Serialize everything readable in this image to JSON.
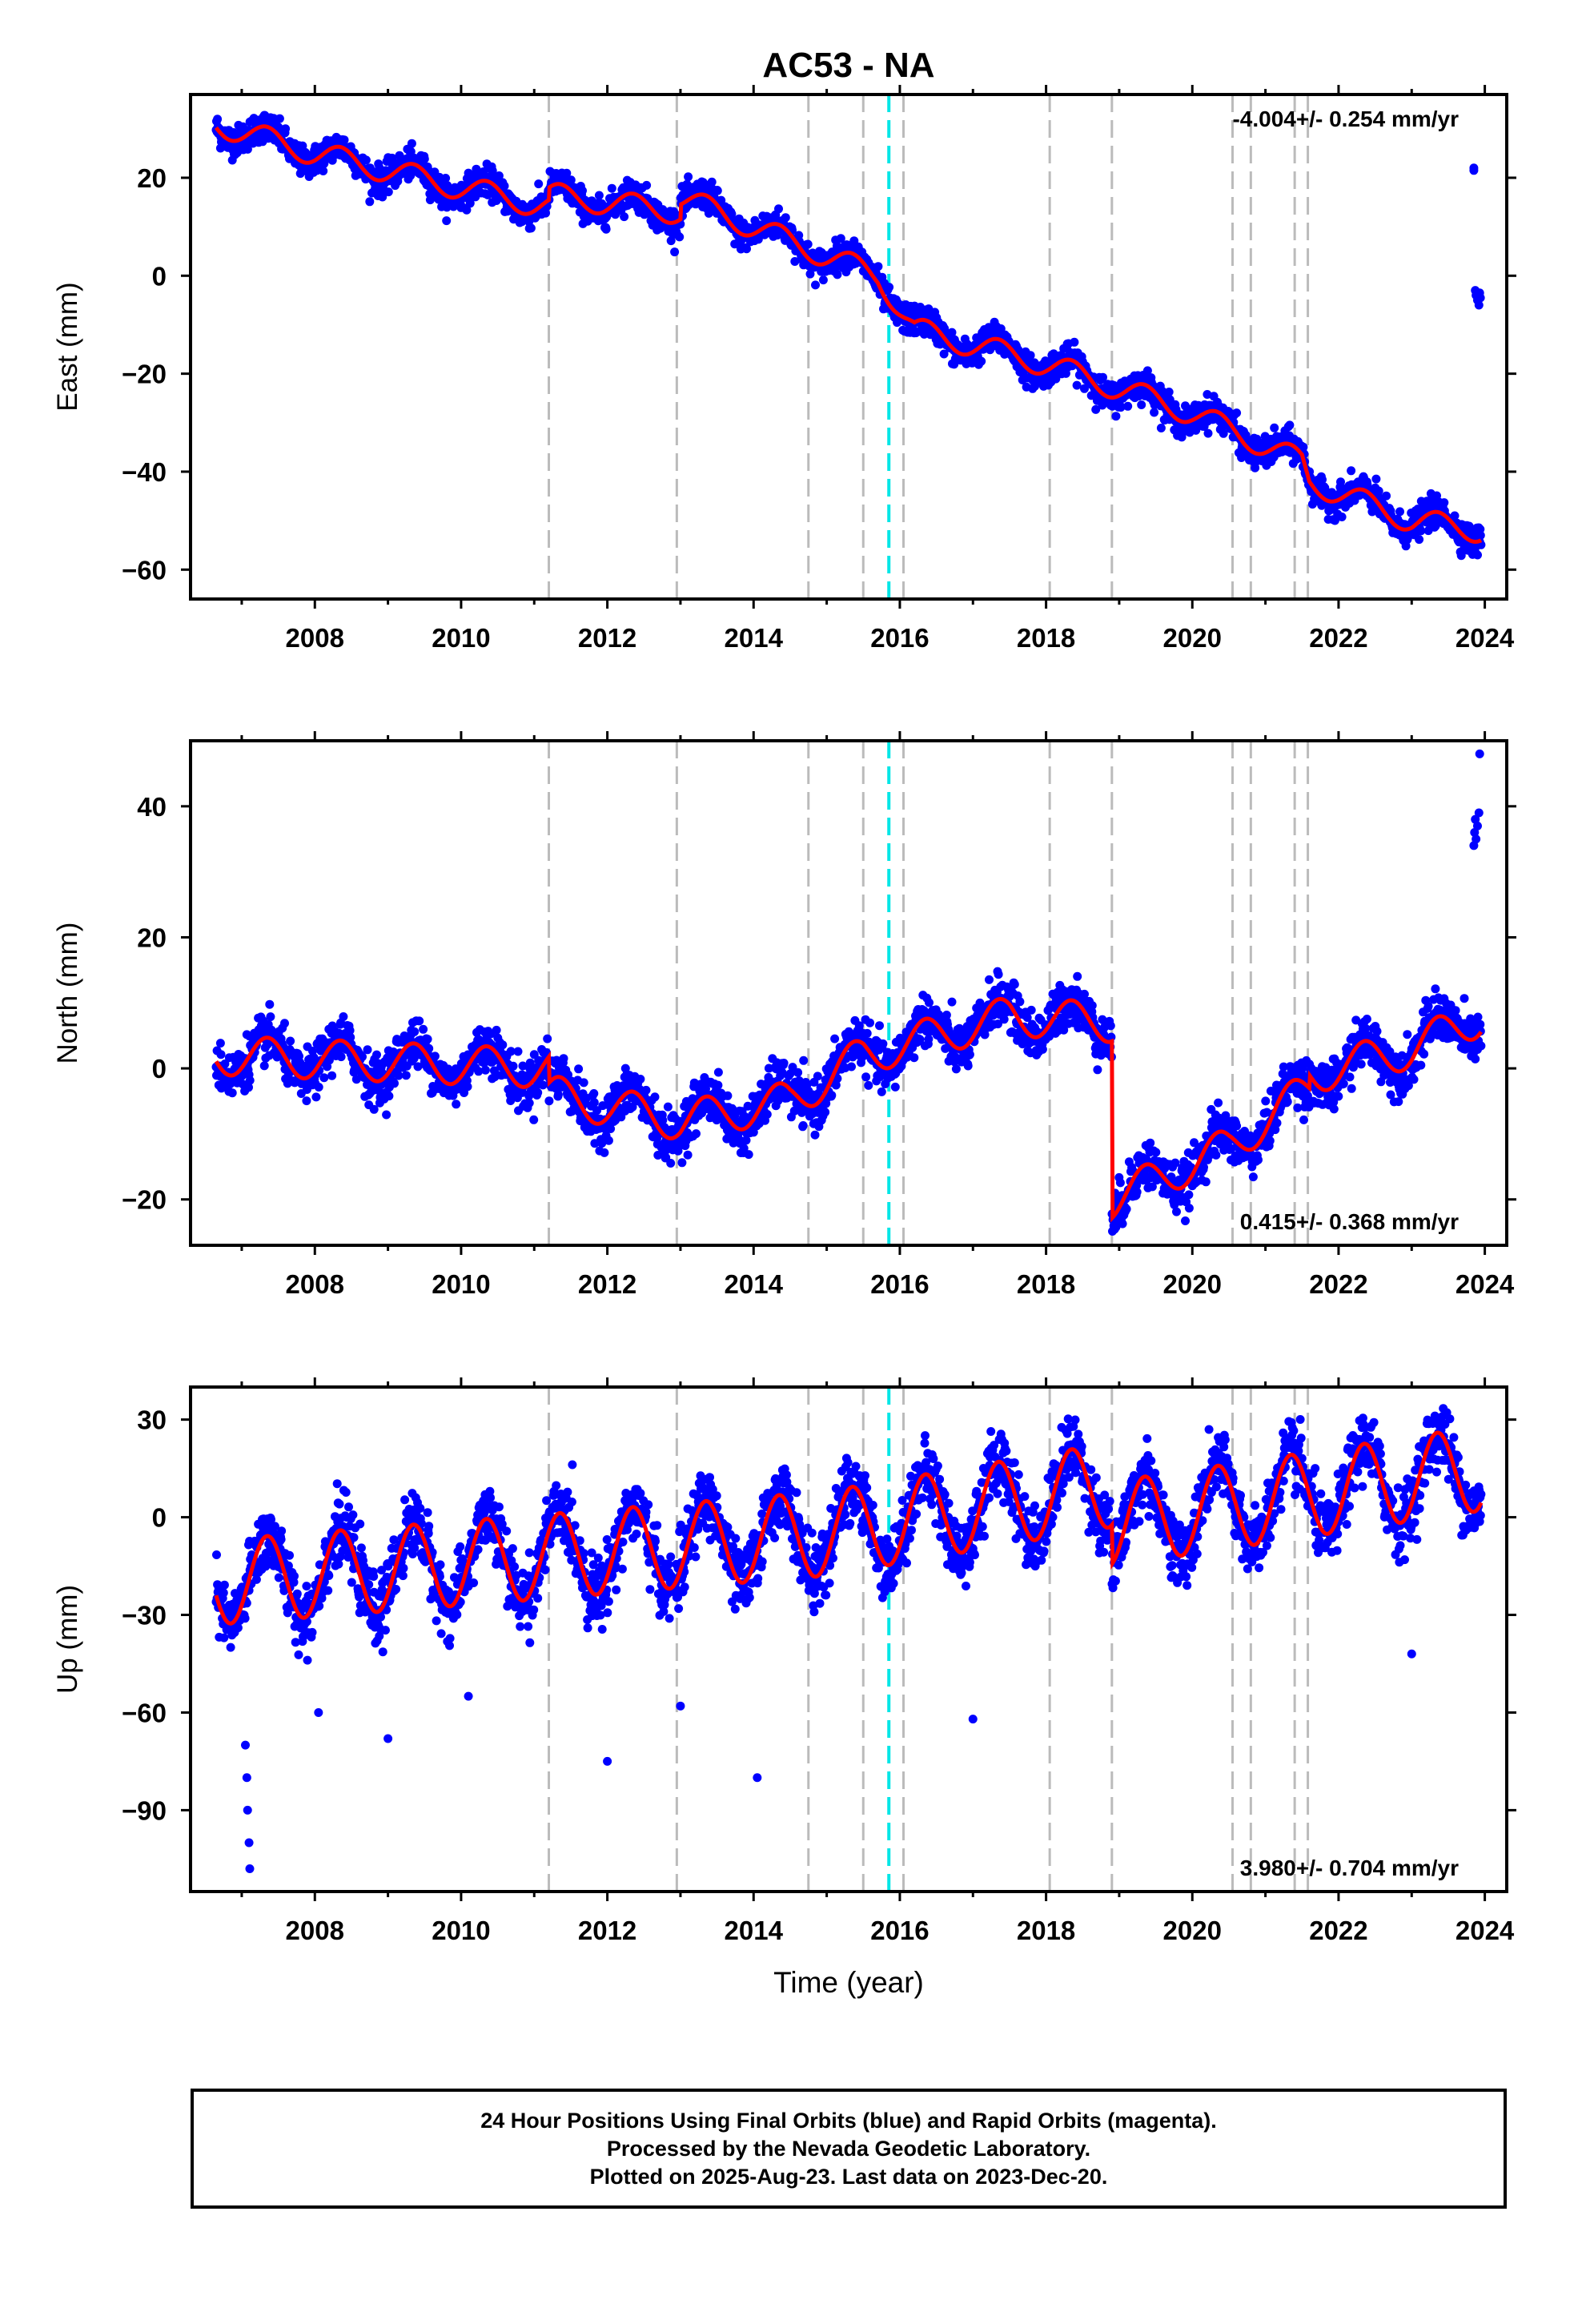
{
  "title": "AC53 - NA",
  "xlabel": "Time (year)",
  "footer": {
    "line1": "24 Hour Positions Using Final Orbits (blue) and Rapid Orbits (magenta).",
    "line2": "Processed by the Nevada Geodetic Laboratory.",
    "line3": "Plotted on 2025-Aug-23. Last data on 2023-Dec-20."
  },
  "colors": {
    "data": "#0000ff",
    "model": "#ff0000",
    "event": "#bbbbbb",
    "highlight": "#00e6e6"
  },
  "chart_data": [
    {
      "type": "scatter",
      "name": "East",
      "ylabel": "East (mm)",
      "xlim": [
        2006.3,
        2024.3
      ],
      "ylim": [
        -66,
        37
      ],
      "yticks": [
        20,
        0,
        -20,
        -40,
        -60
      ],
      "rate": "-4.004+/- 0.254 mm/yr",
      "rate_position": "top-right",
      "trend_knots": [
        [
          2006.65,
          31
        ],
        [
          2008.0,
          25
        ],
        [
          2010.0,
          18
        ],
        [
          2011.2,
          14
        ],
        [
          2011.2,
          16.5
        ],
        [
          2013.0,
          13
        ],
        [
          2013.0,
          16
        ],
        [
          2014.5,
          7
        ],
        [
          2015.7,
          0
        ],
        [
          2016.2,
          -11
        ],
        [
          2018.0,
          -18
        ],
        [
          2020.0,
          -28
        ],
        [
          2021.5,
          -38
        ],
        [
          2021.6,
          -42
        ],
        [
          2023.0,
          -50
        ],
        [
          2023.95,
          -52
        ]
      ],
      "annual_amp": 2.5,
      "scatter_sd": 1.5,
      "outliers": [
        [
          2023.85,
          21.5
        ],
        [
          2023.85,
          22
        ],
        [
          2023.87,
          -3
        ],
        [
          2023.88,
          -4
        ],
        [
          2023.9,
          -5
        ],
        [
          2023.92,
          -6
        ],
        [
          2023.93,
          -3.5
        ],
        [
          2023.94,
          -4.5
        ]
      ],
      "ticks_x": [
        2008,
        2010,
        2012,
        2014,
        2016,
        2018,
        2020,
        2022,
        2024
      ]
    },
    {
      "type": "scatter",
      "name": "North",
      "ylabel": "North (mm)",
      "xlim": [
        2006.3,
        2024.3
      ],
      "ylim": [
        -27,
        50
      ],
      "yticks": [
        40,
        20,
        0,
        -20
      ],
      "rate": "0.415+/- 0.368 mm/yr",
      "rate_position": "bottom-right",
      "trend_knots": [
        [
          2006.65,
          2
        ],
        [
          2011.2,
          0
        ],
        [
          2011.2,
          -4
        ],
        [
          2013.0,
          -8
        ],
        [
          2014.5,
          -5
        ],
        [
          2015.5,
          2
        ],
        [
          2017.5,
          8
        ],
        [
          2018.9,
          7
        ],
        [
          2018.9,
          -20
        ],
        [
          2020.5,
          -12
        ],
        [
          2021.6,
          -3
        ],
        [
          2021.6,
          -1
        ],
        [
          2023.0,
          3
        ],
        [
          2023.95,
          8
        ]
      ],
      "annual_amp": 3.0,
      "scatter_sd": 1.8,
      "outliers": [
        [
          2023.85,
          34
        ],
        [
          2023.86,
          36
        ],
        [
          2023.87,
          38
        ],
        [
          2023.88,
          35
        ],
        [
          2023.9,
          37
        ],
        [
          2023.92,
          39
        ],
        [
          2023.93,
          48
        ]
      ],
      "ticks_x": [
        2008,
        2010,
        2012,
        2014,
        2016,
        2018,
        2020,
        2022,
        2024
      ]
    },
    {
      "type": "scatter",
      "name": "Up",
      "ylabel": "Up (mm)",
      "xlim": [
        2006.3,
        2024.3
      ],
      "ylim": [
        -115,
        40
      ],
      "yticks": [
        30,
        0,
        -30,
        -60,
        -90
      ],
      "rate": "3.980+/- 0.704 mm/yr",
      "rate_position": "bottom-right",
      "trend_knots": [
        [
          2006.65,
          -20
        ],
        [
          2011.2,
          -12
        ],
        [
          2015.0,
          -5
        ],
        [
          2018.9,
          10
        ],
        [
          2018.9,
          -2
        ],
        [
          2021.0,
          5
        ],
        [
          2023.95,
          15
        ]
      ],
      "annual_amp": 13,
      "scatter_sd": 5,
      "outliers": [
        [
          2007.05,
          -70
        ],
        [
          2007.07,
          -80
        ],
        [
          2007.08,
          -90
        ],
        [
          2007.1,
          -100
        ],
        [
          2007.11,
          -108
        ],
        [
          2008.05,
          -60
        ],
        [
          2009.0,
          -68
        ],
        [
          2010.1,
          -55
        ],
        [
          2012.0,
          -75
        ],
        [
          2013.0,
          -58
        ],
        [
          2014.05,
          -80
        ],
        [
          2017.0,
          -62
        ],
        [
          2023.0,
          -42
        ]
      ],
      "ticks_x": [
        2008,
        2010,
        2012,
        2014,
        2016,
        2018,
        2020,
        2022,
        2024
      ]
    }
  ],
  "events": {
    "gray": [
      2011.2,
      2012.95,
      2014.75,
      2015.5,
      2016.05,
      2018.05,
      2018.9,
      2020.55,
      2020.8,
      2021.4,
      2021.58
    ],
    "cyan": [
      2015.85
    ]
  }
}
